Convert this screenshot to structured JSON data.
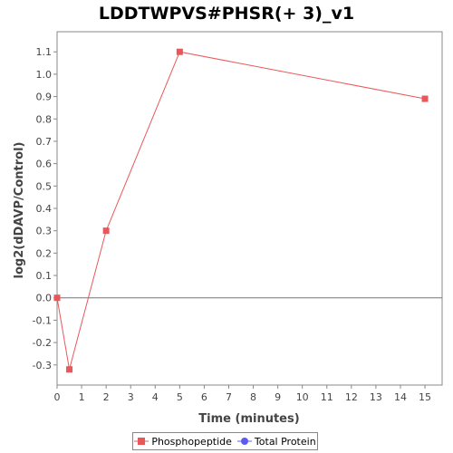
{
  "chart_data": {
    "type": "line",
    "title": "LDDTWPVS#PHSR(+ 3)_v1",
    "xlabel": "Time (minutes)",
    "ylabel": "log2(dDAVP/Control)",
    "xlim": [
      0,
      15.7
    ],
    "ylim": [
      -0.39,
      1.19
    ],
    "xticks": [
      "0",
      "1",
      "2",
      "3",
      "4",
      "5",
      "6",
      "7",
      "8",
      "9",
      "10",
      "11",
      "12",
      "13",
      "14",
      "15"
    ],
    "yticks": [
      "-0.3",
      "-0.2",
      "-0.1",
      "0.0",
      "0.1",
      "0.2",
      "0.3",
      "0.4",
      "0.5",
      "0.6",
      "0.7",
      "0.8",
      "0.9",
      "1.0",
      "1.1"
    ],
    "zero_line": true,
    "grid": false,
    "legend_position": "bottom",
    "series": [
      {
        "name": "Phosphopeptide",
        "color": "#e8585a",
        "marker": "square",
        "x": [
          0,
          0.5,
          2,
          5,
          15
        ],
        "y": [
          0.0,
          -0.32,
          0.3,
          1.1,
          0.89
        ]
      },
      {
        "name": "Total Protein",
        "color": "#5b5bf0",
        "marker": "circle",
        "x": [],
        "y": []
      }
    ]
  }
}
